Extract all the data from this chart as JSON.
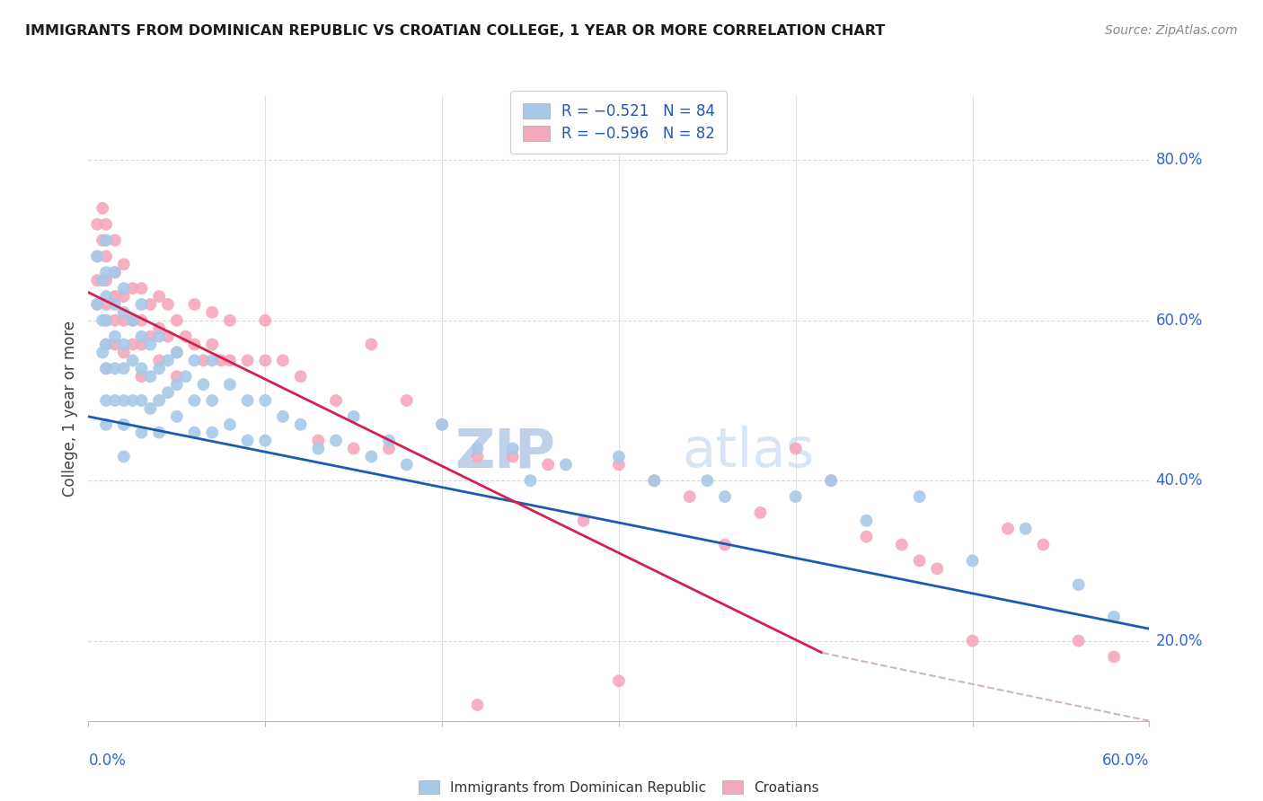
{
  "title": "IMMIGRANTS FROM DOMINICAN REPUBLIC VS CROATIAN COLLEGE, 1 YEAR OR MORE CORRELATION CHART",
  "source": "Source: ZipAtlas.com",
  "ylabel": "College, 1 year or more",
  "right_yticks": [
    "80.0%",
    "60.0%",
    "40.0%",
    "20.0%"
  ],
  "right_ytick_vals": [
    0.8,
    0.6,
    0.4,
    0.2
  ],
  "legend_blue_r": "R = −0.521",
  "legend_blue_n": "N = 84",
  "legend_pink_r": "R = −0.596",
  "legend_pink_n": "N = 82",
  "legend_label_blue": "Immigrants from Dominican Republic",
  "legend_label_pink": "Croatians",
  "blue_color": "#a8c8e8",
  "pink_color": "#f4a8bc",
  "blue_line_color": "#1a5cb0",
  "pink_line_color": "#d42050",
  "dashed_line_color": "#d0b8b8",
  "xlim": [
    0.0,
    0.6
  ],
  "ylim": [
    0.1,
    0.88
  ],
  "blue_scatter_x": [
    0.005,
    0.005,
    0.008,
    0.008,
    0.008,
    0.01,
    0.01,
    0.01,
    0.01,
    0.01,
    0.01,
    0.01,
    0.01,
    0.015,
    0.015,
    0.015,
    0.015,
    0.015,
    0.02,
    0.02,
    0.02,
    0.02,
    0.02,
    0.02,
    0.02,
    0.025,
    0.025,
    0.025,
    0.03,
    0.03,
    0.03,
    0.03,
    0.03,
    0.035,
    0.035,
    0.035,
    0.04,
    0.04,
    0.04,
    0.04,
    0.045,
    0.045,
    0.05,
    0.05,
    0.05,
    0.055,
    0.06,
    0.06,
    0.06,
    0.065,
    0.07,
    0.07,
    0.07,
    0.08,
    0.08,
    0.09,
    0.09,
    0.1,
    0.1,
    0.11,
    0.12,
    0.13,
    0.14,
    0.15,
    0.16,
    0.17,
    0.18,
    0.2,
    0.22,
    0.24,
    0.25,
    0.27,
    0.3,
    0.32,
    0.35,
    0.36,
    0.4,
    0.42,
    0.44,
    0.47,
    0.5,
    0.53,
    0.56,
    0.58
  ],
  "blue_scatter_y": [
    0.68,
    0.62,
    0.65,
    0.6,
    0.56,
    0.7,
    0.66,
    0.63,
    0.6,
    0.57,
    0.54,
    0.5,
    0.47,
    0.66,
    0.62,
    0.58,
    0.54,
    0.5,
    0.64,
    0.61,
    0.57,
    0.54,
    0.5,
    0.47,
    0.43,
    0.6,
    0.55,
    0.5,
    0.62,
    0.58,
    0.54,
    0.5,
    0.46,
    0.57,
    0.53,
    0.49,
    0.58,
    0.54,
    0.5,
    0.46,
    0.55,
    0.51,
    0.56,
    0.52,
    0.48,
    0.53,
    0.55,
    0.5,
    0.46,
    0.52,
    0.55,
    0.5,
    0.46,
    0.52,
    0.47,
    0.5,
    0.45,
    0.5,
    0.45,
    0.48,
    0.47,
    0.44,
    0.45,
    0.48,
    0.43,
    0.45,
    0.42,
    0.47,
    0.44,
    0.44,
    0.4,
    0.42,
    0.43,
    0.4,
    0.4,
    0.38,
    0.38,
    0.4,
    0.35,
    0.38,
    0.3,
    0.34,
    0.27,
    0.23
  ],
  "pink_scatter_x": [
    0.005,
    0.005,
    0.005,
    0.005,
    0.008,
    0.008,
    0.01,
    0.01,
    0.01,
    0.01,
    0.01,
    0.01,
    0.01,
    0.015,
    0.015,
    0.015,
    0.015,
    0.015,
    0.02,
    0.02,
    0.02,
    0.02,
    0.025,
    0.025,
    0.025,
    0.03,
    0.03,
    0.03,
    0.03,
    0.035,
    0.035,
    0.04,
    0.04,
    0.04,
    0.045,
    0.045,
    0.05,
    0.05,
    0.05,
    0.055,
    0.06,
    0.06,
    0.065,
    0.07,
    0.07,
    0.075,
    0.08,
    0.08,
    0.09,
    0.1,
    0.1,
    0.11,
    0.12,
    0.13,
    0.14,
    0.15,
    0.16,
    0.17,
    0.18,
    0.2,
    0.22,
    0.24,
    0.26,
    0.28,
    0.3,
    0.32,
    0.34,
    0.36,
    0.38,
    0.4,
    0.42,
    0.44,
    0.46,
    0.47,
    0.48,
    0.5,
    0.52,
    0.54,
    0.56,
    0.58,
    0.3,
    0.22
  ],
  "pink_scatter_y": [
    0.72,
    0.68,
    0.65,
    0.62,
    0.74,
    0.7,
    0.72,
    0.68,
    0.65,
    0.62,
    0.6,
    0.57,
    0.54,
    0.7,
    0.66,
    0.63,
    0.6,
    0.57,
    0.67,
    0.63,
    0.6,
    0.56,
    0.64,
    0.6,
    0.57,
    0.64,
    0.6,
    0.57,
    0.53,
    0.62,
    0.58,
    0.63,
    0.59,
    0.55,
    0.62,
    0.58,
    0.6,
    0.56,
    0.53,
    0.58,
    0.62,
    0.57,
    0.55,
    0.61,
    0.57,
    0.55,
    0.6,
    0.55,
    0.55,
    0.6,
    0.55,
    0.55,
    0.53,
    0.45,
    0.5,
    0.44,
    0.57,
    0.44,
    0.5,
    0.47,
    0.43,
    0.43,
    0.42,
    0.35,
    0.42,
    0.4,
    0.38,
    0.32,
    0.36,
    0.44,
    0.4,
    0.33,
    0.32,
    0.3,
    0.29,
    0.2,
    0.34,
    0.32,
    0.2,
    0.18,
    0.15,
    0.12
  ],
  "blue_line": {
    "x0": 0.0,
    "y0": 0.48,
    "x1": 0.6,
    "y1": 0.215
  },
  "pink_line": {
    "x0": 0.0,
    "y0": 0.635,
    "x1": 0.415,
    "y1": 0.185
  },
  "dashed_line": {
    "x0": 0.415,
    "y0": 0.185,
    "x1": 0.6,
    "y1": 0.1
  },
  "watermark_zip": "ZIP",
  "watermark_atlas": "atlas",
  "watermark_color": "#c8d8f0",
  "background_color": "#ffffff",
  "grid_color": "#e0e0e0",
  "grid_h_color": "#d8d8d8"
}
